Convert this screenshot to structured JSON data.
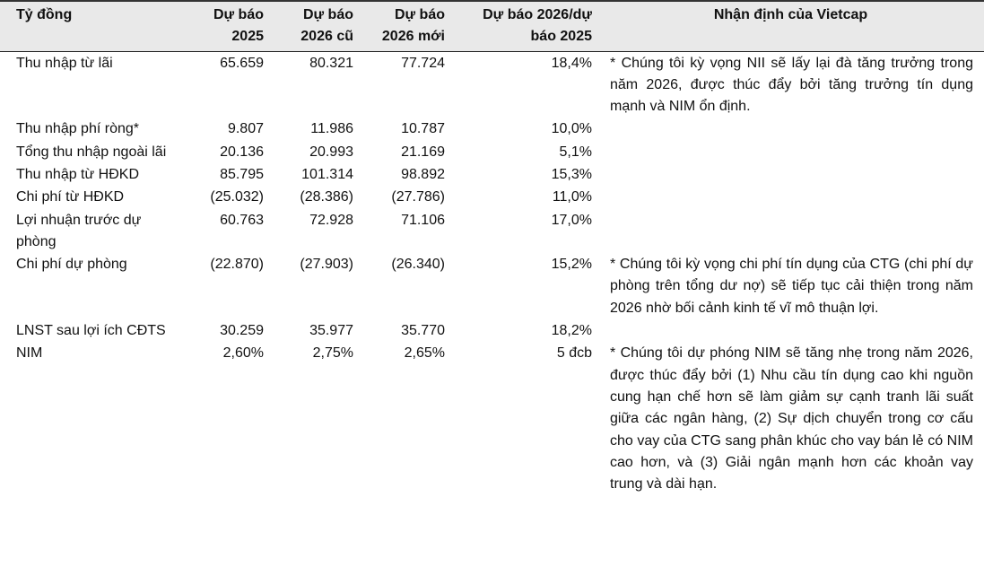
{
  "table": {
    "header": [
      [
        "Tỷ đồng"
      ],
      [
        "Dự báo",
        "2025"
      ],
      [
        "Dự báo",
        "2026 cũ"
      ],
      [
        "Dự báo",
        "2026 mới"
      ],
      [
        "Dự báo 2026/dự",
        "báo 2025"
      ],
      [
        "Nhận định của Vietcap"
      ]
    ],
    "rows": [
      [
        "Thu nhập từ lãi",
        "65.659",
        "80.321",
        "77.724",
        "18,4%",
        "* Chúng tôi kỳ vọng NII sẽ lấy lại đà tăng trưởng trong năm 2026, được thúc đẩy bởi tăng trưởng tín dụng mạnh và NIM ổn định."
      ],
      [
        "Thu nhập phí ròng*",
        "9.807",
        "11.986",
        "10.787",
        "10,0%",
        null
      ],
      [
        "Tổng thu nhập ngoài lãi",
        "20.136",
        "20.993",
        "21.169",
        "5,1%",
        null
      ],
      [
        "Thu nhập từ HĐKD",
        "85.795",
        "101.314",
        "98.892",
        "15,3%",
        null
      ],
      [
        "Chi phí từ HĐKD",
        "(25.032)",
        "(28.386)",
        "(27.786)",
        "11,0%",
        null
      ],
      [
        "Lợi nhuận trước dự phòng",
        "60.763",
        "72.928",
        "71.106",
        "17,0%",
        null
      ],
      [
        "Chi phí dự phòng",
        "(22.870)",
        "(27.903)",
        "(26.340)",
        "15,2%",
        "* Chúng tôi kỳ vọng chi phí tín dụng của CTG (chi phí dự phòng trên tổng dư nợ) sẽ tiếp tục cải thiện trong năm 2026 nhờ bối cảnh kinh tế vĩ mô thuận lợi."
      ],
      [
        "LNST sau lợi ích CĐTS",
        "30.259",
        "35.977",
        "35.770",
        "18,2%",
        null
      ],
      [
        "NIM",
        "2,60%",
        "2,75%",
        "2,65%",
        "5 đcb",
        "* Chúng tôi dự phóng NIM sẽ tăng nhẹ trong năm 2026, được thúc đẩy bởi (1) Nhu cầu tín dụng cao khi nguồn cung hạn chế hơn sẽ làm giảm sự cạnh tranh lãi suất giữa các ngân hàng, (2) Sự dịch chuyển trong cơ cấu cho vay của CTG sang phân khúc cho vay bán lẻ có NIM cao hơn, và (3) Giải ngân mạnh hơn các khoản vay trung và dài hạn."
      ]
    ]
  }
}
